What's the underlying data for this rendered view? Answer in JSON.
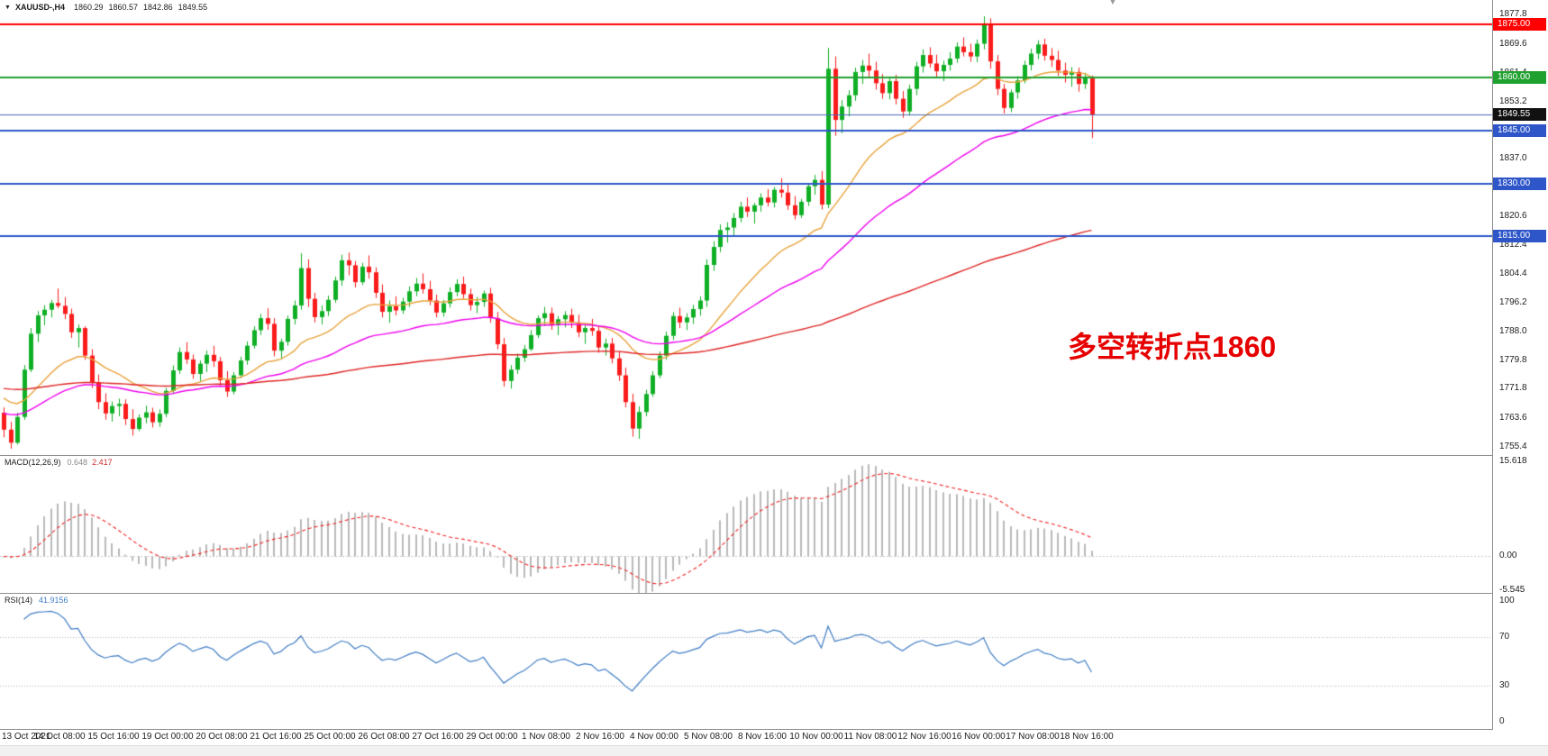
{
  "window": {
    "symbol_period": "XAUUSD-,H4",
    "ohlc": {
      "open": "1860.29",
      "high": "1860.57",
      "low": "1842.86",
      "close": "1849.55"
    },
    "icons": {
      "oneclick": "▼",
      "shift_marker": "▼"
    }
  },
  "chart_data": {
    "type": "candlestick",
    "symbol": "XAUUSD-",
    "timeframe": "H4",
    "title": "XAUUSD-,H4 1860.29 1860.57 1842.86 1849.55",
    "annotation": {
      "text": "多空转折点1860",
      "color": "#e60000"
    },
    "y_axis": {
      "min": 1753,
      "max": 1882,
      "ticks": [
        "1877.8",
        "1869.6",
        "1861.4",
        "1853.2",
        "1845.0",
        "1837.0",
        "1828.8",
        "1820.6",
        "1812.4",
        "1804.4",
        "1796.2",
        "1788.0",
        "1779.8",
        "1771.8",
        "1763.6",
        "1755.4"
      ]
    },
    "x_labels": [
      "13 Oct 2021",
      "14 Oct 08:00",
      "15 Oct 16:00",
      "19 Oct 00:00",
      "20 Oct 08:00",
      "21 Oct 16:00",
      "25 Oct 00:00",
      "26 Oct 08:00",
      "27 Oct 16:00",
      "29 Oct 00:00",
      "1 Nov 08:00",
      "2 Nov 16:00",
      "4 Nov 00:00",
      "5 Nov 08:00",
      "8 Nov 16:00",
      "10 Nov 00:00",
      "11 Nov 08:00",
      "12 Nov 16:00",
      "16 Nov 00:00",
      "17 Nov 08:00",
      "18 Nov 16:00"
    ],
    "horizontal_levels": [
      {
        "price": 1875.0,
        "label": "1875.00",
        "color": "#fe0000",
        "width": 2
      },
      {
        "price": 1860.0,
        "label": "1860.00",
        "color": "#1fa12f",
        "width": 2
      },
      {
        "price": 1845.0,
        "label": "1845.00",
        "color": "#2e56c9",
        "width": 2
      },
      {
        "price": 1830.0,
        "label": "1830.00",
        "color": "#2e56c9",
        "width": 2
      },
      {
        "price": 1815.0,
        "label": "1815.00",
        "color": "#2e56c9",
        "width": 2
      }
    ],
    "current_price": {
      "value": 1849.55,
      "label": "1849.55",
      "line_color": "#4a68b8",
      "badge_color": "#111111"
    },
    "moving_averages": [
      {
        "name": "ema-fast",
        "period": 21,
        "seed": 1770,
        "color": "#e8a33c"
      },
      {
        "name": "ema-mid",
        "period": 48,
        "seed": 1765,
        "color": "#ee00ee"
      },
      {
        "name": "ema-slow",
        "period": 170,
        "seed": 1772,
        "color": "#df2626"
      }
    ],
    "candles": [
      [
        1765.0,
        1766.5,
        1758.0,
        1760.2
      ],
      [
        1760.2,
        1762.4,
        1754.8,
        1756.5
      ],
      [
        1756.5,
        1765.0,
        1756.0,
        1763.8
      ],
      [
        1763.8,
        1778.5,
        1763.0,
        1777.2
      ],
      [
        1777.2,
        1789.0,
        1776.5,
        1787.4
      ],
      [
        1787.4,
        1793.8,
        1785.0,
        1792.6
      ],
      [
        1792.6,
        1795.5,
        1789.8,
        1794.2
      ],
      [
        1794.2,
        1797.0,
        1792.0,
        1796.1
      ],
      [
        1796.1,
        1800.2,
        1794.6,
        1795.3
      ],
      [
        1795.3,
        1797.8,
        1791.5,
        1793.0
      ],
      [
        1793.0,
        1794.5,
        1786.2,
        1787.8
      ],
      [
        1787.8,
        1790.0,
        1783.5,
        1789.0
      ],
      [
        1789.0,
        1789.5,
        1780.0,
        1781.2
      ],
      [
        1781.2,
        1783.0,
        1772.0,
        1773.5
      ],
      [
        1773.5,
        1775.8,
        1766.0,
        1768.0
      ],
      [
        1768.0,
        1770.5,
        1763.0,
        1764.8
      ],
      [
        1764.8,
        1768.2,
        1762.5,
        1766.9
      ],
      [
        1766.9,
        1769.0,
        1764.0,
        1767.5
      ],
      [
        1767.5,
        1768.8,
        1761.5,
        1763.2
      ],
      [
        1763.2,
        1766.0,
        1758.5,
        1760.4
      ],
      [
        1760.4,
        1764.5,
        1759.8,
        1763.6
      ],
      [
        1763.6,
        1767.0,
        1762.0,
        1765.1
      ],
      [
        1765.1,
        1766.4,
        1760.8,
        1762.3
      ],
      [
        1762.3,
        1765.9,
        1761.0,
        1764.7
      ],
      [
        1764.7,
        1772.0,
        1763.8,
        1771.2
      ],
      [
        1771.2,
        1778.4,
        1770.5,
        1777.0
      ],
      [
        1777.0,
        1783.5,
        1776.0,
        1782.2
      ],
      [
        1782.2,
        1785.0,
        1778.8,
        1780.1
      ],
      [
        1780.1,
        1781.5,
        1774.6,
        1776.0
      ],
      [
        1776.0,
        1779.8,
        1774.0,
        1778.9
      ],
      [
        1778.9,
        1782.6,
        1776.5,
        1781.4
      ],
      [
        1781.4,
        1784.0,
        1778.0,
        1779.6
      ],
      [
        1779.6,
        1780.8,
        1772.5,
        1774.2
      ],
      [
        1774.2,
        1776.8,
        1769.5,
        1771.0
      ],
      [
        1771.0,
        1776.5,
        1770.2,
        1775.6
      ],
      [
        1775.6,
        1780.9,
        1774.8,
        1779.8
      ],
      [
        1779.8,
        1785.2,
        1778.6,
        1784.0
      ],
      [
        1784.0,
        1789.5,
        1783.2,
        1788.4
      ],
      [
        1788.4,
        1793.0,
        1787.0,
        1791.8
      ],
      [
        1791.8,
        1794.6,
        1788.5,
        1790.2
      ],
      [
        1790.2,
        1791.8,
        1781.0,
        1782.6
      ],
      [
        1782.6,
        1786.0,
        1780.4,
        1785.1
      ],
      [
        1785.1,
        1792.5,
        1784.0,
        1791.6
      ],
      [
        1791.6,
        1796.8,
        1790.0,
        1795.4
      ],
      [
        1795.4,
        1810.2,
        1794.2,
        1806.0
      ],
      [
        1806.0,
        1808.5,
        1795.0,
        1797.3
      ],
      [
        1797.3,
        1799.0,
        1790.6,
        1792.1
      ],
      [
        1792.1,
        1795.4,
        1790.0,
        1793.8
      ],
      [
        1793.8,
        1798.2,
        1792.4,
        1797.0
      ],
      [
        1797.0,
        1803.6,
        1796.2,
        1802.5
      ],
      [
        1802.5,
        1809.8,
        1801.0,
        1808.2
      ],
      [
        1808.2,
        1810.4,
        1804.0,
        1806.8
      ],
      [
        1806.8,
        1808.0,
        1800.5,
        1802.0
      ],
      [
        1802.0,
        1807.5,
        1801.2,
        1806.4
      ],
      [
        1806.4,
        1809.6,
        1803.0,
        1804.8
      ],
      [
        1804.8,
        1806.2,
        1797.5,
        1799.0
      ],
      [
        1799.0,
        1801.4,
        1792.0,
        1793.6
      ],
      [
        1793.6,
        1796.8,
        1790.5,
        1795.2
      ],
      [
        1795.2,
        1798.0,
        1792.6,
        1794.0
      ],
      [
        1794.0,
        1797.6,
        1793.0,
        1796.5
      ],
      [
        1796.5,
        1800.8,
        1795.0,
        1799.4
      ],
      [
        1799.4,
        1803.2,
        1798.0,
        1801.6
      ],
      [
        1801.6,
        1804.5,
        1798.8,
        1800.0
      ],
      [
        1800.0,
        1802.4,
        1795.5,
        1796.8
      ],
      [
        1796.8,
        1798.5,
        1792.0,
        1793.4
      ],
      [
        1793.4,
        1797.0,
        1792.2,
        1796.0
      ],
      [
        1796.0,
        1800.5,
        1794.8,
        1799.2
      ],
      [
        1799.2,
        1802.8,
        1798.0,
        1801.5
      ],
      [
        1801.5,
        1803.6,
        1797.4,
        1798.6
      ],
      [
        1798.6,
        1800.2,
        1794.0,
        1795.5
      ],
      [
        1795.5,
        1797.8,
        1793.2,
        1796.4
      ],
      [
        1796.4,
        1799.6,
        1795.0,
        1798.8
      ],
      [
        1798.8,
        1800.4,
        1790.5,
        1791.8
      ],
      [
        1791.8,
        1793.6,
        1783.0,
        1784.4
      ],
      [
        1784.4,
        1786.2,
        1772.4,
        1774.0
      ],
      [
        1774.0,
        1778.5,
        1771.8,
        1777.2
      ],
      [
        1777.2,
        1781.8,
        1776.0,
        1780.6
      ],
      [
        1780.6,
        1784.2,
        1779.4,
        1783.0
      ],
      [
        1783.0,
        1788.4,
        1782.5,
        1787.0
      ],
      [
        1787.0,
        1792.6,
        1786.2,
        1791.8
      ],
      [
        1791.8,
        1795.0,
        1789.6,
        1793.2
      ],
      [
        1793.2,
        1794.8,
        1788.5,
        1790.0
      ],
      [
        1790.0,
        1792.4,
        1787.0,
        1791.5
      ],
      [
        1791.5,
        1793.8,
        1789.2,
        1792.7
      ],
      [
        1792.7,
        1794.5,
        1789.0,
        1790.6
      ],
      [
        1790.6,
        1792.8,
        1786.4,
        1787.8
      ],
      [
        1787.8,
        1790.0,
        1784.5,
        1789.0
      ],
      [
        1789.0,
        1791.6,
        1786.8,
        1788.2
      ],
      [
        1788.2,
        1789.4,
        1782.0,
        1783.5
      ],
      [
        1783.5,
        1786.0,
        1781.2,
        1784.6
      ],
      [
        1784.6,
        1786.2,
        1779.0,
        1780.4
      ],
      [
        1780.4,
        1782.5,
        1774.0,
        1775.6
      ],
      [
        1775.6,
        1777.8,
        1766.5,
        1768.0
      ],
      [
        1768.0,
        1770.4,
        1758.2,
        1760.5
      ],
      [
        1760.5,
        1766.8,
        1757.6,
        1765.2
      ],
      [
        1765.2,
        1771.5,
        1764.0,
        1770.3
      ],
      [
        1770.3,
        1776.8,
        1769.5,
        1775.6
      ],
      [
        1775.6,
        1782.4,
        1774.8,
        1781.2
      ],
      [
        1781.2,
        1788.0,
        1780.0,
        1786.8
      ],
      [
        1786.8,
        1793.5,
        1785.6,
        1792.4
      ],
      [
        1792.4,
        1794.8,
        1789.0,
        1790.6
      ],
      [
        1790.6,
        1793.2,
        1788.4,
        1792.0
      ],
      [
        1792.0,
        1795.6,
        1790.2,
        1794.4
      ],
      [
        1794.4,
        1798.0,
        1792.5,
        1796.8
      ],
      [
        1796.8,
        1808.5,
        1795.0,
        1806.9
      ],
      [
        1806.9,
        1813.6,
        1805.2,
        1812.0
      ],
      [
        1812.0,
        1818.4,
        1810.5,
        1816.8
      ],
      [
        1816.8,
        1819.0,
        1813.2,
        1817.5
      ],
      [
        1817.5,
        1821.6,
        1815.0,
        1820.2
      ],
      [
        1820.2,
        1824.8,
        1819.0,
        1823.4
      ],
      [
        1823.4,
        1826.0,
        1820.5,
        1822.0
      ],
      [
        1822.0,
        1824.5,
        1818.6,
        1823.8
      ],
      [
        1823.8,
        1827.2,
        1822.0,
        1826.0
      ],
      [
        1826.0,
        1828.4,
        1823.5,
        1824.6
      ],
      [
        1824.6,
        1829.0,
        1823.2,
        1828.2
      ],
      [
        1828.2,
        1831.5,
        1826.0,
        1827.4
      ],
      [
        1827.4,
        1829.6,
        1822.5,
        1823.8
      ],
      [
        1823.8,
        1826.4,
        1819.8,
        1821.0
      ],
      [
        1821.0,
        1825.6,
        1820.2,
        1824.8
      ],
      [
        1824.8,
        1830.0,
        1823.6,
        1829.2
      ],
      [
        1829.2,
        1832.4,
        1826.8,
        1831.0
      ],
      [
        1831.0,
        1833.5,
        1822.6,
        1824.0
      ],
      [
        1824.0,
        1868.4,
        1823.0,
        1862.5
      ],
      [
        1862.5,
        1866.0,
        1843.5,
        1848.0
      ],
      [
        1848.0,
        1853.6,
        1844.2,
        1851.8
      ],
      [
        1851.8,
        1856.4,
        1849.0,
        1855.0
      ],
      [
        1855.0,
        1862.8,
        1853.4,
        1861.6
      ],
      [
        1861.6,
        1865.0,
        1858.2,
        1863.4
      ],
      [
        1863.4,
        1866.8,
        1860.0,
        1862.0
      ],
      [
        1862.0,
        1864.5,
        1856.6,
        1858.4
      ],
      [
        1858.4,
        1861.0,
        1854.0,
        1855.6
      ],
      [
        1855.6,
        1860.2,
        1853.8,
        1859.0
      ],
      [
        1859.0,
        1860.8,
        1852.4,
        1854.0
      ],
      [
        1854.0,
        1856.2,
        1848.6,
        1850.4
      ],
      [
        1850.4,
        1858.0,
        1849.2,
        1856.8
      ],
      [
        1856.8,
        1864.5,
        1855.0,
        1863.2
      ],
      [
        1863.2,
        1868.0,
        1861.4,
        1866.4
      ],
      [
        1866.4,
        1868.6,
        1862.8,
        1864.0
      ],
      [
        1864.0,
        1866.5,
        1860.2,
        1861.8
      ],
      [
        1861.8,
        1864.8,
        1859.0,
        1863.6
      ],
      [
        1863.6,
        1867.2,
        1862.0,
        1865.4
      ],
      [
        1865.4,
        1870.0,
        1864.2,
        1868.8
      ],
      [
        1868.8,
        1871.4,
        1866.0,
        1867.2
      ],
      [
        1867.2,
        1869.6,
        1864.5,
        1866.0
      ],
      [
        1866.0,
        1870.8,
        1864.4,
        1869.6
      ],
      [
        1869.6,
        1877.4,
        1868.0,
        1875.2
      ],
      [
        1875.2,
        1876.8,
        1862.5,
        1864.6
      ],
      [
        1864.6,
        1866.4,
        1855.0,
        1856.8
      ],
      [
        1856.8,
        1858.2,
        1849.8,
        1851.4
      ],
      [
        1851.4,
        1856.6,
        1850.2,
        1855.8
      ],
      [
        1855.8,
        1860.4,
        1854.0,
        1859.2
      ],
      [
        1859.2,
        1864.8,
        1858.4,
        1863.6
      ],
      [
        1863.6,
        1868.2,
        1862.0,
        1866.8
      ],
      [
        1866.8,
        1870.6,
        1865.2,
        1869.4
      ],
      [
        1869.4,
        1871.0,
        1864.8,
        1866.2
      ],
      [
        1866.2,
        1868.4,
        1863.0,
        1865.0
      ],
      [
        1865.0,
        1867.6,
        1860.5,
        1862.0
      ],
      [
        1862.0,
        1864.2,
        1858.6,
        1860.8
      ],
      [
        1860.8,
        1863.0,
        1857.4,
        1861.6
      ],
      [
        1861.6,
        1862.8,
        1856.0,
        1858.2
      ],
      [
        1858.2,
        1861.4,
        1856.8,
        1860.29
      ],
      [
        1860.29,
        1860.57,
        1842.86,
        1849.55
      ]
    ],
    "macd": {
      "label": "MACD(12,26,9)",
      "value_main": "0.648",
      "value_signal": "2.417",
      "fast": 12,
      "slow": 26,
      "signal": 9,
      "scale": [
        {
          "value": 15.618,
          "label": "15.618"
        },
        {
          "value": 0,
          "label": "0.00"
        },
        {
          "value": -5.545,
          "label": "-5.545"
        }
      ],
      "range": {
        "max": 16.5,
        "min": -6
      }
    },
    "rsi": {
      "label": "RSI(14)",
      "value": "41.9156",
      "period": 14,
      "levels": [
        70,
        30
      ],
      "scale": [
        {
          "value": 100,
          "label": "100"
        },
        {
          "value": 70,
          "label": "70"
        },
        {
          "value": 30,
          "label": "30"
        },
        {
          "value": 0,
          "label": "0"
        }
      ]
    },
    "colors": {
      "bull": "#0faf25",
      "bear": "#fa1b1b",
      "macd_hist": "#b9b9b9",
      "macd_signal": "#f02222",
      "rsi_line": "#3f7cc4",
      "level_dotted": "#b8b8b8",
      "background": "#ffffff"
    }
  }
}
